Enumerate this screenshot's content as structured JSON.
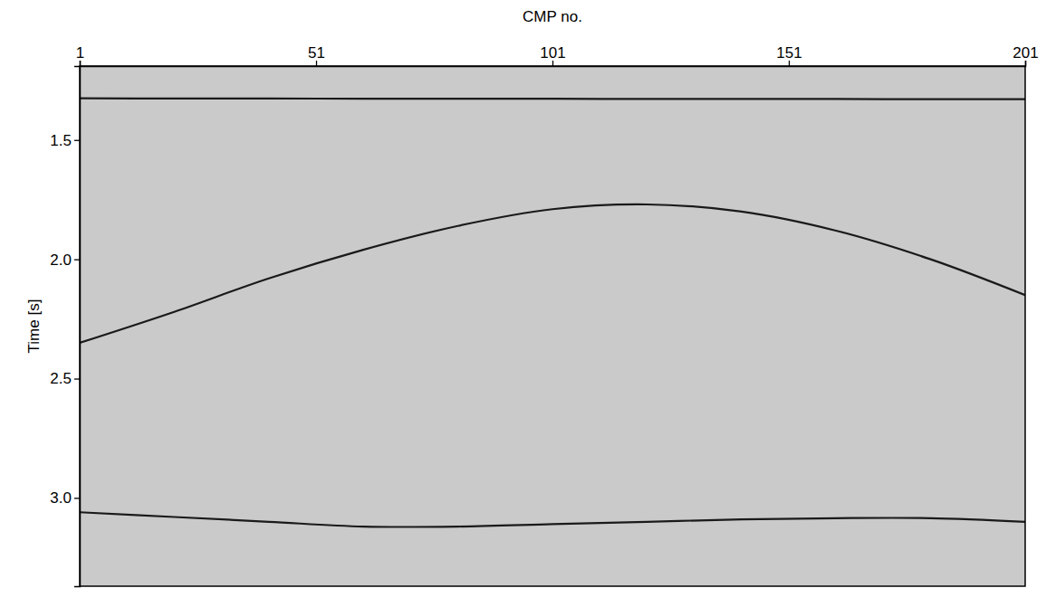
{
  "chart_data": {
    "type": "line",
    "x_label": "CMP no.",
    "y_label": "Time [s]",
    "x": [
      1,
      21,
      41,
      61,
      81,
      101,
      121,
      141,
      161,
      181,
      201
    ],
    "series": [
      {
        "color": "#1a1a1a",
        "values": [
          1.325,
          1.326,
          1.326,
          1.327,
          1.327,
          1.327,
          1.328,
          1.328,
          1.328,
          1.329,
          1.329
        ]
      },
      {
        "color": "#1a1a1a",
        "values": [
          2.35,
          2.22,
          2.08,
          1.96,
          1.86,
          1.79,
          1.77,
          1.8,
          1.88,
          2.0,
          2.15
        ]
      },
      {
        "color": "#1a1a1a",
        "values": [
          3.06,
          3.08,
          3.1,
          3.12,
          3.12,
          3.11,
          3.1,
          3.09,
          3.085,
          3.085,
          3.1
        ]
      }
    ],
    "xlim": [
      1,
      201
    ],
    "xticks": [
      1,
      51,
      101,
      151,
      201
    ],
    "ylim": [
      1.19,
      3.37
    ],
    "yticks": [
      1.5,
      {
        "value": 2,
        "label": "2.0"
      },
      2.5,
      {
        "value": 3,
        "label": "3.0"
      }
    ],
    "grid": false
  }
}
